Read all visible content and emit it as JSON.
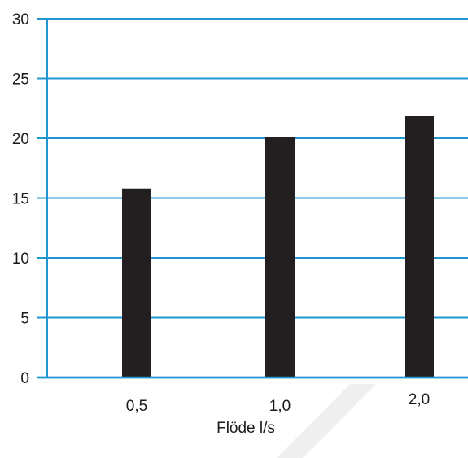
{
  "chart_data": {
    "type": "bar",
    "categories": [
      "0,5",
      "1,0",
      "2,0"
    ],
    "values": [
      15.8,
      20.1,
      21.9
    ],
    "title": "",
    "xlabel": "Flöde l/s",
    "ylabel": "",
    "ylim": [
      0,
      30
    ],
    "yticks": [
      0,
      5,
      10,
      15,
      20,
      25,
      30
    ],
    "ytick_labels": [
      "0",
      "5",
      "10",
      "15",
      "20",
      "25",
      "30"
    ],
    "grid": true,
    "colors": {
      "bar": "#231f20",
      "grid": "#2196d3",
      "text": "#1a1a1a",
      "watermark": "#efefef"
    }
  }
}
